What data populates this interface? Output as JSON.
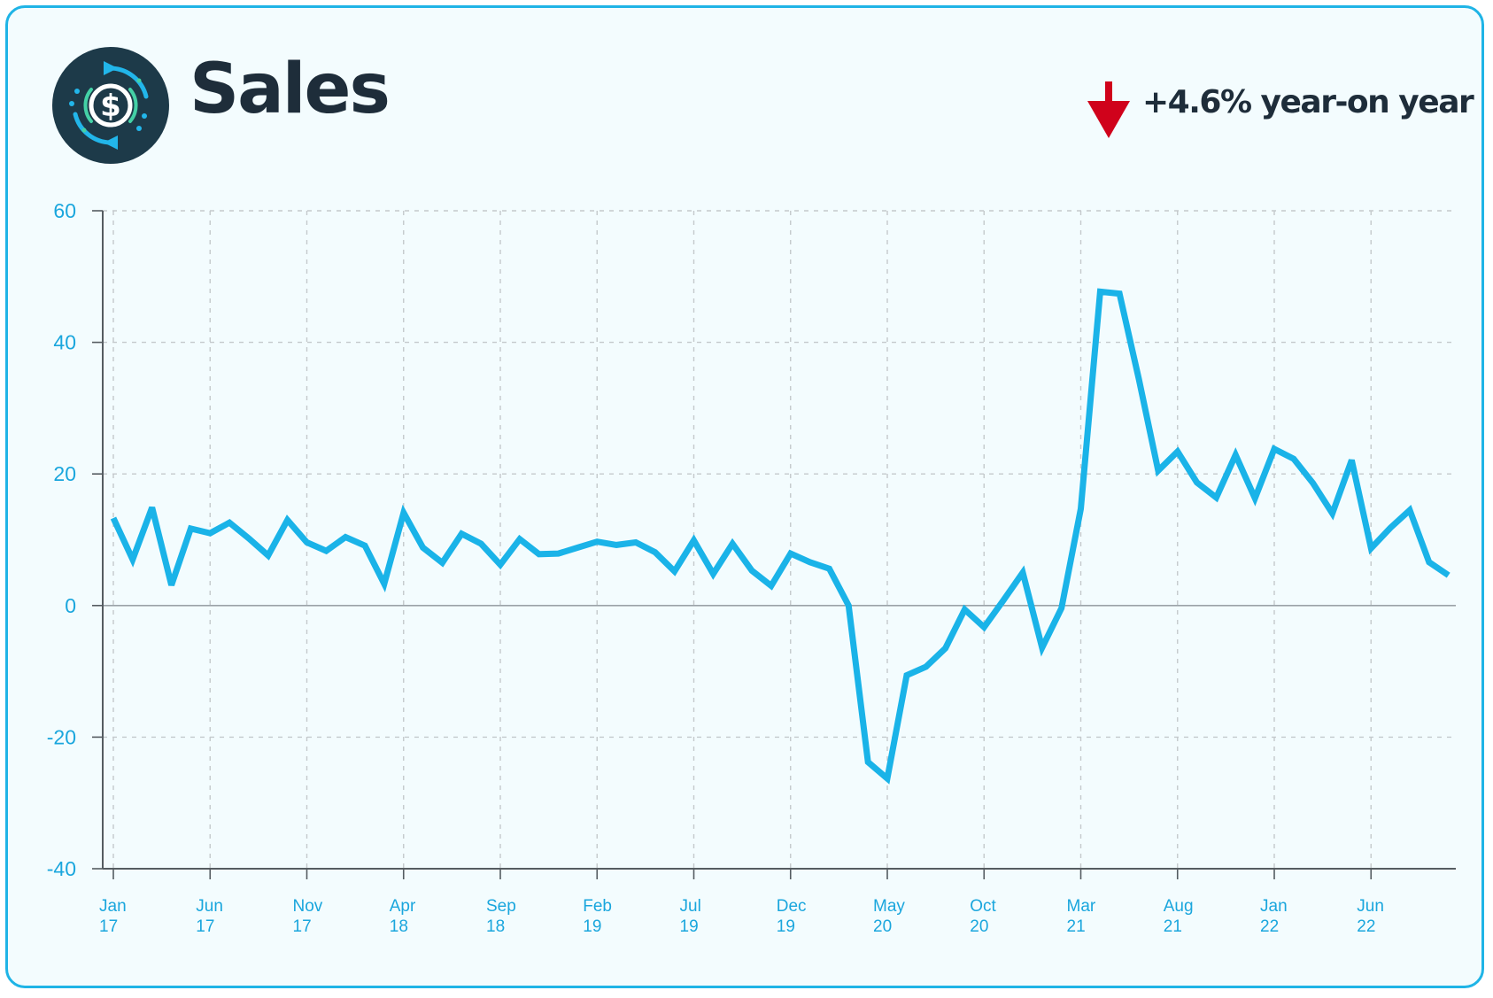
{
  "header": {
    "title": "Sales",
    "yoy_text": "+4.6% year-on year",
    "logo_icon": "dollar-cycle-icon",
    "trend_icon": "arrow-down-icon",
    "trend_color": "#d0021b"
  },
  "colors": {
    "border": "#1fb4e6",
    "background": "#f3fcfe",
    "line": "#1ab3e8",
    "tick_text": "#1aa6dd",
    "title_text": "#1e2d3a"
  },
  "chart_data": {
    "type": "line",
    "title": "",
    "xlabel": "",
    "ylabel": "",
    "ylim": [
      -40,
      60
    ],
    "y_ticks": [
      60,
      40,
      20,
      0,
      -20,
      -40
    ],
    "grid": true,
    "legend": "none",
    "x_ticks": [
      {
        "month": 0,
        "line1": "Jan",
        "line2": "17"
      },
      {
        "month": 5,
        "line1": "Jun",
        "line2": "17"
      },
      {
        "month": 10,
        "line1": "Nov",
        "line2": "17"
      },
      {
        "month": 15,
        "line1": "Apr",
        "line2": "18"
      },
      {
        "month": 20,
        "line1": "Sep",
        "line2": "18"
      },
      {
        "month": 25,
        "line1": "Feb",
        "line2": "19"
      },
      {
        "month": 30,
        "line1": "Jul",
        "line2": "19"
      },
      {
        "month": 35,
        "line1": "Dec",
        "line2": "19"
      },
      {
        "month": 40,
        "line1": "May",
        "line2": "20"
      },
      {
        "month": 45,
        "line1": "Oct",
        "line2": "20"
      },
      {
        "month": 50,
        "line1": "Mar",
        "line2": "21"
      },
      {
        "month": 55,
        "line1": "Aug",
        "line2": "21"
      },
      {
        "month": 60,
        "line1": "Jan",
        "line2": "22"
      },
      {
        "month": 65,
        "line1": "Jun",
        "line2": "22"
      }
    ],
    "series": [
      {
        "values": [
          13.3,
          7.0,
          14.9,
          3.1,
          11.7,
          11.0,
          12.6,
          10.2,
          7.6,
          13.0,
          9.6,
          8.3,
          10.4,
          9.1,
          3.3,
          14.1,
          8.8,
          6.5,
          10.9,
          9.4,
          6.2,
          10.1,
          7.8,
          7.9,
          8.8,
          9.7,
          9.2,
          9.6,
          8.1,
          5.2,
          9.9,
          4.8,
          9.4,
          5.3,
          3.0,
          7.9,
          6.6,
          5.6,
          0.0,
          -23.8,
          -26.3,
          -10.6,
          -9.3,
          -6.5,
          -0.6,
          -3.3,
          0.8,
          5.0,
          -6.4,
          -0.4,
          14.7,
          47.7,
          47.4,
          34.4,
          20.5,
          23.4,
          18.7,
          16.4,
          22.9,
          16.3,
          23.8,
          22.3,
          18.6,
          14.0,
          22.1,
          8.7,
          11.8,
          14.5,
          6.6,
          4.6
        ]
      }
    ]
  }
}
